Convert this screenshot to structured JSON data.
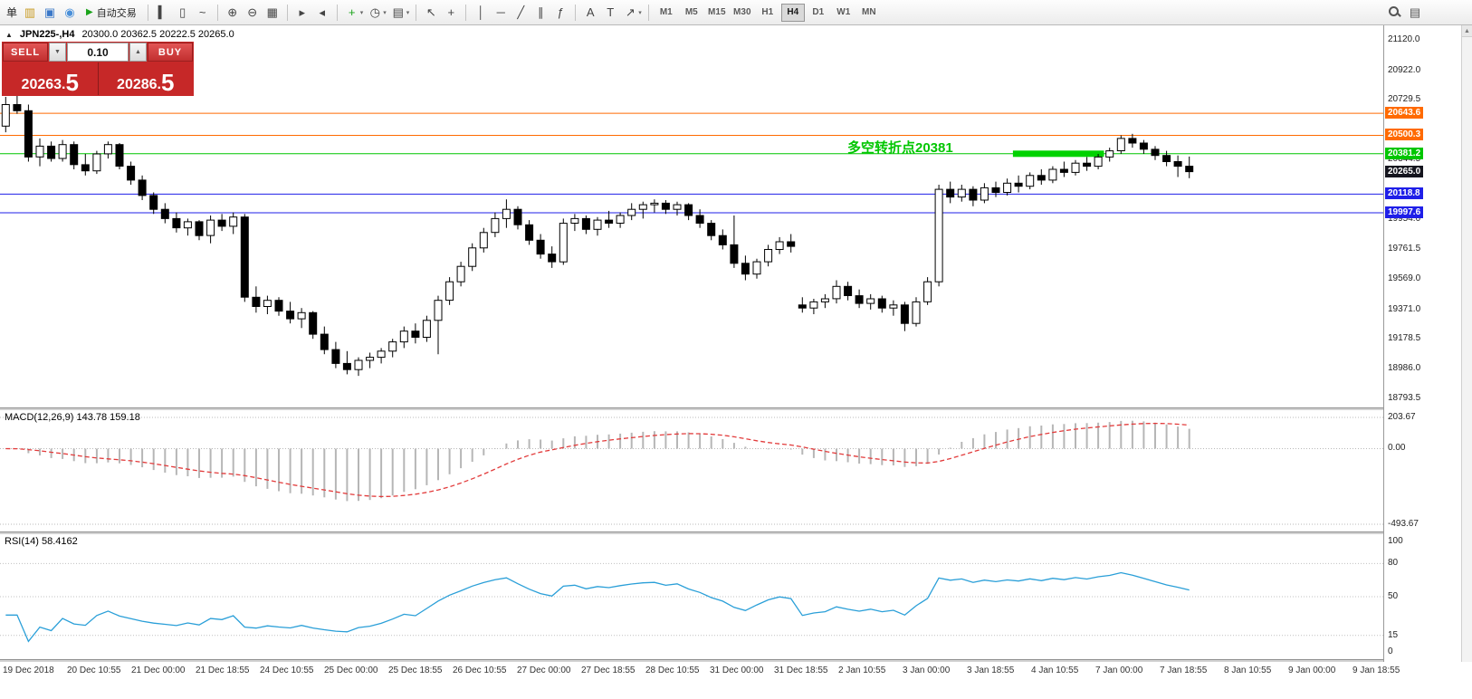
{
  "toolbar": {
    "items": [
      {
        "name": "new-order-button",
        "type": "text",
        "label": "单"
      },
      {
        "name": "chart-window-icon",
        "type": "icon",
        "glyph": "▥",
        "color": "#c89a20"
      },
      {
        "name": "market-watch-icon",
        "type": "icon",
        "glyph": "▣",
        "color": "#3a78c8"
      },
      {
        "name": "info-icon",
        "type": "icon",
        "glyph": "◉",
        "color": "#4a90d9"
      },
      {
        "name": "autotrading-button",
        "type": "button",
        "glyph": "▶",
        "glyph_color": "#1aa31a",
        "label": "自动交易"
      },
      {
        "name": "sep"
      },
      {
        "name": "bar-chart-mode-icon",
        "type": "icon",
        "glyph": "▍",
        "color": "#444"
      },
      {
        "name": "candlestick-mode-icon",
        "type": "icon",
        "glyph": "▯",
        "color": "#444"
      },
      {
        "name": "line-chart-mode-icon",
        "type": "icon",
        "glyph": "~",
        "color": "#444"
      },
      {
        "name": "sep"
      },
      {
        "name": "zoom-in-icon",
        "type": "icon",
        "glyph": "⊕",
        "color": "#444"
      },
      {
        "name": "zoom-out-icon",
        "type": "icon",
        "glyph": "⊖",
        "color": "#444"
      },
      {
        "name": "tile-windows-icon",
        "type": "icon",
        "glyph": "▦",
        "color": "#444"
      },
      {
        "name": "sep"
      },
      {
        "name": "auto-scroll-icon",
        "type": "icon",
        "glyph": "▸",
        "color": "#444"
      },
      {
        "name": "chart-shift-icon",
        "type": "icon",
        "glyph": "◂",
        "color": "#444"
      },
      {
        "name": "sep"
      },
      {
        "name": "indicators-icon",
        "type": "icon",
        "glyph": "+",
        "color": "#1aa31a",
        "caret": true
      },
      {
        "name": "periods-icon",
        "type": "icon",
        "glyph": "◷",
        "color": "#444",
        "caret": true
      },
      {
        "name": "templates-icon",
        "type": "icon",
        "glyph": "▤",
        "color": "#444",
        "caret": true
      },
      {
        "name": "sep"
      },
      {
        "name": "cursor-icon",
        "type": "icon",
        "glyph": "↖",
        "color": "#444"
      },
      {
        "name": "crosshair-icon",
        "type": "icon",
        "glyph": "+",
        "color": "#444"
      },
      {
        "name": "sep"
      },
      {
        "name": "vertical-line-icon",
        "type": "icon",
        "glyph": "│",
        "color": "#444"
      },
      {
        "name": "horizontal-line-icon",
        "type": "icon",
        "glyph": "─",
        "color": "#444"
      },
      {
        "name": "trendline-icon",
        "type": "icon",
        "glyph": "╱",
        "color": "#444"
      },
      {
        "name": "channel-icon",
        "type": "icon",
        "glyph": "∥",
        "color": "#444"
      },
      {
        "name": "fibonacci-icon",
        "type": "icon",
        "glyph": "ƒ",
        "color": "#444"
      },
      {
        "name": "sep"
      },
      {
        "name": "text-icon",
        "type": "icon",
        "glyph": "A",
        "color": "#444"
      },
      {
        "name": "text-label-icon",
        "type": "icon",
        "glyph": "T",
        "color": "#444"
      },
      {
        "name": "arrows-icon",
        "type": "icon",
        "glyph": "↗",
        "color": "#444",
        "caret": true
      },
      {
        "name": "sep"
      }
    ],
    "timeframes": [
      "M1",
      "M5",
      "M15",
      "M30",
      "H1",
      "H4",
      "D1",
      "W1",
      "MN"
    ],
    "active_timeframe": "H4",
    "right_icons": [
      {
        "name": "search-icon",
        "type": "lens"
      },
      {
        "name": "toolbar-list-icon",
        "type": "icon",
        "glyph": "▤",
        "color": "#555"
      }
    ]
  },
  "chart_header": {
    "symbol": "JPN225-,H4",
    "ohlc": "20300.0 20362.5 20222.5 20265.0"
  },
  "one_click": {
    "sell_label": "SELL",
    "buy_label": "BUY",
    "volume": "0.10",
    "bid_small": "20263.",
    "bid_big": "5",
    "ask_small": "20286.",
    "ask_big": "5"
  },
  "annotation": {
    "text": "多空转折点20381",
    "color": "#00c600"
  },
  "price_lines": [
    {
      "label": "20643.6",
      "price": 20643.6,
      "color": "#ff6a00"
    },
    {
      "label": "20500.3",
      "price": 20500.3,
      "color": "#ff6a00"
    },
    {
      "label": "20381.2",
      "price": 20381.2,
      "color": "#00c600"
    },
    {
      "label": "20118.8",
      "price": 20118.8,
      "color": "#1f1fe8"
    },
    {
      "label": "19997.6",
      "price": 19997.6,
      "color": "#1f1fe8"
    }
  ],
  "bid_tag": {
    "label": "20265.0",
    "price": 20265.0,
    "color": "#15151e"
  },
  "trend_segment": {
    "price": 20381.2,
    "start_index": 89,
    "end_index": 96,
    "color": "#00d200",
    "thickness": 7
  },
  "price_axis": {
    "ticks": [
      "21120.0",
      "20922.0",
      "20729.5",
      "20344.5",
      "19954.0",
      "19761.5",
      "19569.0",
      "19371.0",
      "19178.5",
      "18986.0",
      "18793.5"
    ]
  },
  "time_axis": {
    "labels": [
      "19 Dec 2018",
      "20 Dec 10:55",
      "21 Dec 00:00",
      "21 Dec 18:55",
      "24 Dec 10:55",
      "25 Dec 00:00",
      "25 Dec 18:55",
      "26 Dec 10:55",
      "27 Dec 00:00",
      "27 Dec 18:55",
      "28 Dec 10:55",
      "31 Dec 00:00",
      "31 Dec 18:55",
      "2 Jan 10:55",
      "3 Jan 00:00",
      "3 Jan 18:55",
      "4 Jan 10:55",
      "7 Jan 00:00",
      "7 Jan 18:55",
      "8 Jan 10:55",
      "9 Jan 00:00",
      "9 Jan 18:55"
    ]
  },
  "scrollbar": {
    "up_glyph": "▲"
  },
  "chart_data": {
    "type": "candlestick",
    "symbol": "JPN225-",
    "timeframe": "H4",
    "ylim": [
      18793.5,
      21120.0
    ],
    "style": {
      "bull_color": "#ffffff",
      "bear_color": "#000000",
      "outline": "#000000"
    },
    "candles": [
      [
        20560,
        20750,
        20520,
        20700
      ],
      [
        20700,
        20760,
        20640,
        20660
      ],
      [
        20660,
        20700,
        20330,
        20360
      ],
      [
        20360,
        20480,
        20300,
        20430
      ],
      [
        20430,
        20460,
        20330,
        20350
      ],
      [
        20350,
        20470,
        20330,
        20440
      ],
      [
        20440,
        20460,
        20280,
        20310
      ],
      [
        20310,
        20380,
        20240,
        20270
      ],
      [
        20270,
        20400,
        20250,
        20380
      ],
      [
        20380,
        20460,
        20350,
        20440
      ],
      [
        20440,
        20450,
        20280,
        20300
      ],
      [
        20300,
        20330,
        20180,
        20210
      ],
      [
        20210,
        20240,
        20080,
        20110
      ],
      [
        20110,
        20130,
        19990,
        20020
      ],
      [
        20020,
        20060,
        19930,
        19960
      ],
      [
        19960,
        20000,
        19870,
        19900
      ],
      [
        19900,
        19960,
        19850,
        19940
      ],
      [
        19940,
        19950,
        19820,
        19850
      ],
      [
        19850,
        19980,
        19800,
        19950
      ],
      [
        19950,
        19990,
        19880,
        19910
      ],
      [
        19910,
        20000,
        19860,
        19970
      ],
      [
        19970,
        19990,
        19420,
        19450
      ],
      [
        19450,
        19520,
        19350,
        19390
      ],
      [
        19390,
        19460,
        19340,
        19430
      ],
      [
        19430,
        19450,
        19330,
        19360
      ],
      [
        19360,
        19420,
        19280,
        19310
      ],
      [
        19310,
        19380,
        19250,
        19350
      ],
      [
        19350,
        19360,
        19180,
        19210
      ],
      [
        19210,
        19260,
        19080,
        19110
      ],
      [
        19110,
        19160,
        18990,
        19020
      ],
      [
        19020,
        19100,
        18950,
        18980
      ],
      [
        18980,
        19060,
        18940,
        19040
      ],
      [
        19040,
        19090,
        18990,
        19060
      ],
      [
        19060,
        19120,
        19020,
        19100
      ],
      [
        19100,
        19180,
        19060,
        19160
      ],
      [
        19160,
        19260,
        19120,
        19230
      ],
      [
        19230,
        19280,
        19150,
        19190
      ],
      [
        19190,
        19330,
        19160,
        19300
      ],
      [
        19300,
        19460,
        19080,
        19430
      ],
      [
        19430,
        19580,
        19400,
        19550
      ],
      [
        19550,
        19680,
        19520,
        19650
      ],
      [
        19650,
        19800,
        19620,
        19770
      ],
      [
        19770,
        19900,
        19740,
        19870
      ],
      [
        19870,
        20000,
        19840,
        19960
      ],
      [
        19960,
        20085,
        19900,
        20020
      ],
      [
        20020,
        20040,
        19890,
        19920
      ],
      [
        19920,
        19950,
        19790,
        19820
      ],
      [
        19820,
        19860,
        19700,
        19730
      ],
      [
        19730,
        19780,
        19640,
        19680
      ],
      [
        19680,
        19960,
        19660,
        19930
      ],
      [
        19930,
        19990,
        19880,
        19960
      ],
      [
        19960,
        19980,
        19860,
        19890
      ],
      [
        19890,
        19970,
        19850,
        19950
      ],
      [
        19950,
        20010,
        19900,
        19930
      ],
      [
        19930,
        20000,
        19900,
        19980
      ],
      [
        19980,
        20060,
        19950,
        20020
      ],
      [
        20020,
        20070,
        19960,
        20050
      ],
      [
        20050,
        20085,
        20000,
        20060
      ],
      [
        20060,
        20080,
        19990,
        20020
      ],
      [
        20020,
        20070,
        19980,
        20050
      ],
      [
        20050,
        20060,
        19950,
        19980
      ],
      [
        19980,
        20020,
        19900,
        19930
      ],
      [
        19930,
        19950,
        19820,
        19850
      ],
      [
        19850,
        19890,
        19760,
        19790
      ],
      [
        19790,
        19980,
        19640,
        19670
      ],
      [
        19670,
        19720,
        19560,
        19600
      ],
      [
        19600,
        19700,
        19570,
        19680
      ],
      [
        19680,
        19790,
        19650,
        19760
      ],
      [
        19760,
        19840,
        19730,
        19810
      ],
      [
        19810,
        19860,
        19740,
        19780
      ],
      [
        19400,
        19450,
        19350,
        19380
      ],
      [
        19380,
        19440,
        19340,
        19420
      ],
      [
        19420,
        19470,
        19380,
        19440
      ],
      [
        19440,
        19560,
        19410,
        19520
      ],
      [
        19520,
        19550,
        19430,
        19460
      ],
      [
        19460,
        19500,
        19380,
        19410
      ],
      [
        19410,
        19470,
        19370,
        19440
      ],
      [
        19440,
        19460,
        19350,
        19380
      ],
      [
        19380,
        19430,
        19330,
        19400
      ],
      [
        19400,
        19420,
        19230,
        19280
      ],
      [
        19280,
        19450,
        19260,
        19420
      ],
      [
        19420,
        19580,
        19400,
        19550
      ],
      [
        19550,
        20180,
        19520,
        20150
      ],
      [
        20150,
        20200,
        20060,
        20100
      ],
      [
        20100,
        20180,
        20070,
        20150
      ],
      [
        20150,
        20170,
        20040,
        20080
      ],
      [
        20080,
        20190,
        20060,
        20160
      ],
      [
        20160,
        20200,
        20100,
        20130
      ],
      [
        20130,
        20220,
        20110,
        20190
      ],
      [
        20190,
        20240,
        20130,
        20170
      ],
      [
        20170,
        20260,
        20150,
        20240
      ],
      [
        20240,
        20280,
        20180,
        20210
      ],
      [
        20210,
        20300,
        20190,
        20280
      ],
      [
        20280,
        20330,
        20230,
        20260
      ],
      [
        20260,
        20340,
        20240,
        20320
      ],
      [
        20320,
        20360,
        20270,
        20300
      ],
      [
        20300,
        20380,
        20280,
        20360
      ],
      [
        20360,
        20420,
        20330,
        20400
      ],
      [
        20400,
        20500,
        20380,
        20480
      ],
      [
        20480,
        20510,
        20420,
        20450
      ],
      [
        20450,
        20470,
        20380,
        20410
      ],
      [
        20410,
        20430,
        20340,
        20370
      ],
      [
        20370,
        20400,
        20300,
        20330
      ],
      [
        20330,
        20370,
        20230,
        20300
      ],
      [
        20300,
        20362.5,
        20222.5,
        20265
      ]
    ],
    "indicators": [
      {
        "name": "MACD",
        "label": "MACD(12,26,9) 143.78 159.18",
        "params": [
          12,
          26,
          9
        ],
        "values": [
          143.78,
          159.18
        ],
        "scale_max": 203.67,
        "scale_min": -493.67,
        "axis_labels": [
          "203.67",
          "0.00",
          "-493.67"
        ],
        "histogram_color": "#b6b6b6",
        "signal_color": "#e23b3b"
      },
      {
        "name": "RSI",
        "label": "RSI(14) 58.4162",
        "params": [
          14
        ],
        "value": 58.4162,
        "levels": [
          80,
          50,
          15
        ],
        "axis_labels": [
          "100",
          "80",
          "50",
          "15",
          "0"
        ],
        "line_color": "#2a9fd8"
      }
    ]
  }
}
